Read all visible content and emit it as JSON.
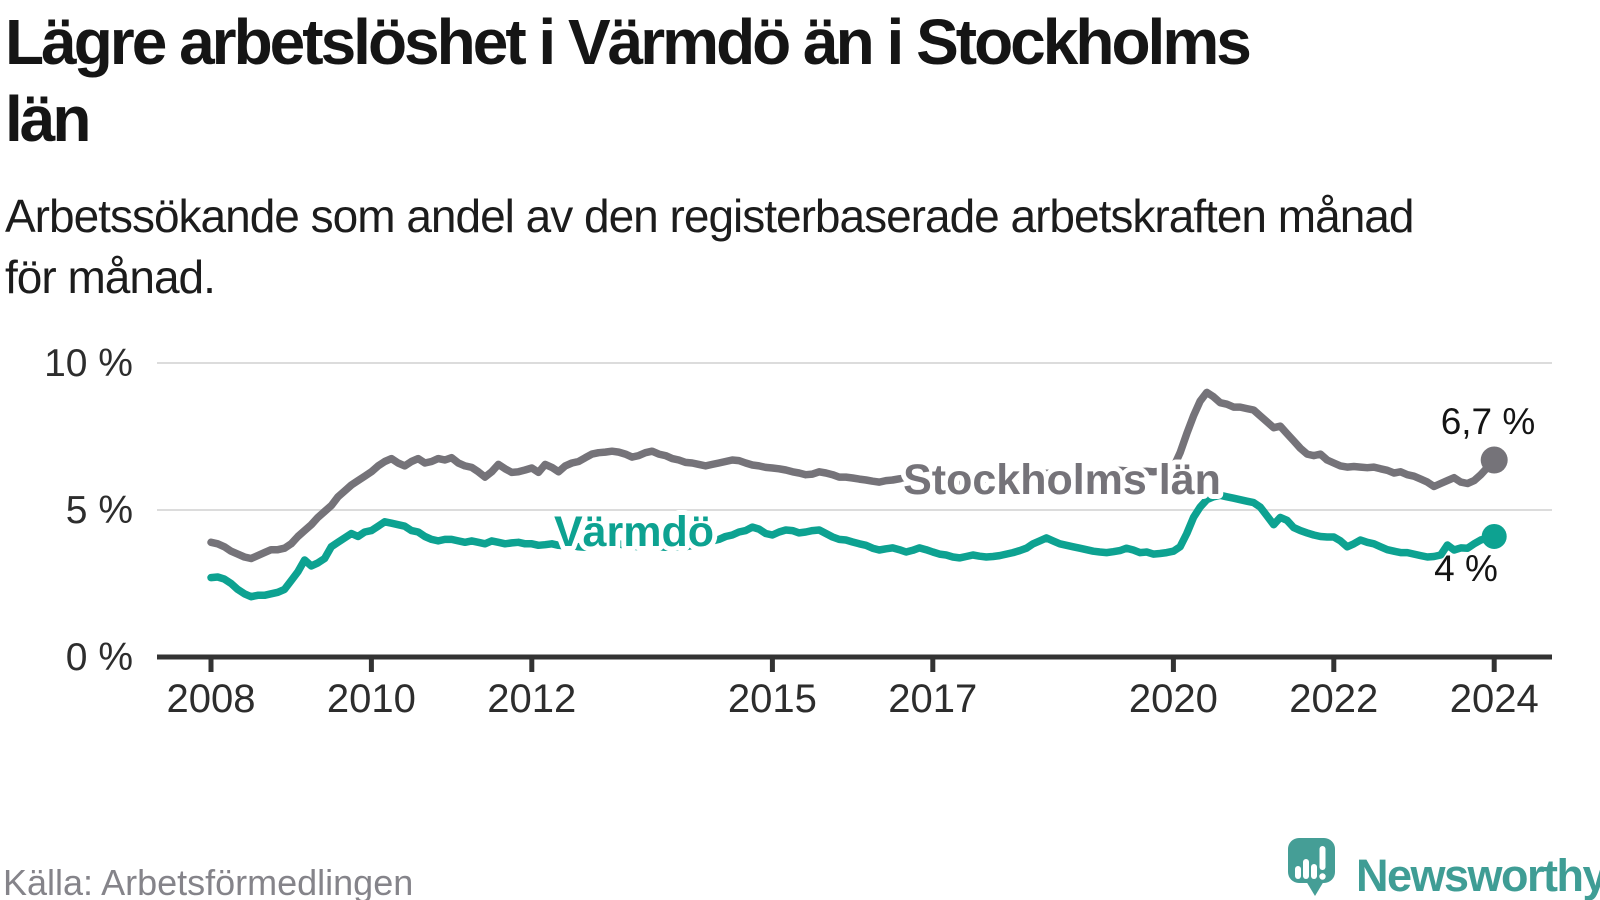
{
  "header": {
    "title_line1": "Lägre arbetslöshet i Värmdö än i Stockholms",
    "title_line2": "län",
    "subtitle_line1": "Arbetssökande som andel av den registerbaserade arbetskraften månad",
    "subtitle_line2": "för månad."
  },
  "footer": {
    "source": "Källa: Arbetsförmedlingen",
    "brand": "Newsworthy"
  },
  "colors": {
    "series_stockholm": "#757379",
    "series_varmdo": "#0da291",
    "gridline": "#dcdcdc",
    "axis": "#333333",
    "brand_teal": "#459e96",
    "text_dark": "#151515",
    "source_gray": "#85848a"
  },
  "chart_data": {
    "type": "line",
    "title": "Lägre arbetslöshet i Värmdö än i Stockholms län",
    "subtitle": "Arbetssökande som andel av den registerbaserade arbetskraften månad för månad.",
    "unit": "%",
    "x_start": "2008-01",
    "x_end": "2024-01",
    "x_interval": "monthly",
    "x_tick_years": [
      2008,
      2010,
      2012,
      2015,
      2017,
      2020,
      2022,
      2024
    ],
    "x_tick_labels": [
      "2008",
      "2010",
      "2012",
      "2015",
      "2017",
      "2020",
      "2022",
      "2024"
    ],
    "y_ticks": [
      {
        "label": "0 %",
        "value": 0
      },
      {
        "label": "5 %",
        "value": 5
      },
      {
        "label": "10 %",
        "value": 10
      }
    ],
    "ylim": [
      0,
      10.4
    ],
    "grid": "horizontal",
    "legend_position": "inline-labels",
    "source": "Källa: Arbetsförmedlingen",
    "series": [
      {
        "name": "Stockholms län",
        "color": "#757379",
        "end_label": "6,7 %",
        "last_value": 6.7,
        "values": [
          3.9,
          3.85,
          3.75,
          3.6,
          3.5,
          3.4,
          3.35,
          3.45,
          3.55,
          3.65,
          3.65,
          3.7,
          3.85,
          4.1,
          4.3,
          4.5,
          4.75,
          4.95,
          5.15,
          5.45,
          5.65,
          5.85,
          6.0,
          6.15,
          6.3,
          6.5,
          6.65,
          6.75,
          6.6,
          6.5,
          6.65,
          6.75,
          6.6,
          6.65,
          6.75,
          6.7,
          6.78,
          6.6,
          6.5,
          6.45,
          6.3,
          6.12,
          6.3,
          6.55,
          6.4,
          6.28,
          6.3,
          6.36,
          6.43,
          6.28,
          6.55,
          6.45,
          6.3,
          6.5,
          6.6,
          6.65,
          6.78,
          6.9,
          6.95,
          6.97,
          7.0,
          6.97,
          6.9,
          6.8,
          6.85,
          6.95,
          7.0,
          6.9,
          6.85,
          6.75,
          6.7,
          6.62,
          6.6,
          6.55,
          6.5,
          6.55,
          6.6,
          6.65,
          6.7,
          6.68,
          6.6,
          6.53,
          6.5,
          6.45,
          6.43,
          6.4,
          6.36,
          6.3,
          6.26,
          6.2,
          6.22,
          6.3,
          6.26,
          6.2,
          6.12,
          6.12,
          6.09,
          6.05,
          6.02,
          5.98,
          5.95,
          6.0,
          6.02,
          6.06,
          6.09,
          6.05,
          6.02,
          6.0,
          6.0,
          5.97,
          5.95,
          5.95,
          5.97,
          6.0,
          6.0,
          6.02,
          6.05,
          6.07,
          6.08,
          6.1,
          6.1,
          6.13,
          6.16,
          6.2,
          6.22,
          6.25,
          6.24,
          6.22,
          6.2,
          6.22,
          6.23,
          6.24,
          6.25,
          6.27,
          6.3,
          6.32,
          6.35,
          6.33,
          6.3,
          6.3,
          6.32,
          6.3,
          6.32,
          6.35,
          6.45,
          6.95,
          7.6,
          8.2,
          8.7,
          9.0,
          8.85,
          8.65,
          8.6,
          8.5,
          8.5,
          8.45,
          8.4,
          8.2,
          8.0,
          7.8,
          7.85,
          7.6,
          7.35,
          7.1,
          6.9,
          6.85,
          6.9,
          6.7,
          6.6,
          6.5,
          6.46,
          6.48,
          6.46,
          6.44,
          6.46,
          6.4,
          6.35,
          6.26,
          6.3,
          6.2,
          6.15,
          6.05,
          5.95,
          5.8,
          5.9,
          6.0,
          6.1,
          5.95,
          5.9,
          6.0,
          6.2,
          6.45,
          6.7
        ]
      },
      {
        "name": "Värmdö",
        "color": "#0da291",
        "end_label": "4 %",
        "last_value": 4.0,
        "values": [
          2.7,
          2.72,
          2.65,
          2.5,
          2.3,
          2.15,
          2.05,
          2.1,
          2.1,
          2.15,
          2.2,
          2.3,
          2.6,
          2.9,
          3.3,
          3.1,
          3.2,
          3.35,
          3.75,
          3.9,
          4.05,
          4.2,
          4.1,
          4.25,
          4.3,
          4.45,
          4.6,
          4.55,
          4.5,
          4.45,
          4.3,
          4.25,
          4.1,
          4.0,
          3.95,
          4.0,
          4.0,
          3.95,
          3.9,
          3.95,
          3.9,
          3.85,
          3.95,
          3.9,
          3.85,
          3.88,
          3.9,
          3.85,
          3.85,
          3.8,
          3.82,
          3.85,
          3.8,
          3.78,
          3.8,
          3.75,
          3.73,
          3.78,
          3.85,
          3.8,
          3.8,
          3.85,
          3.8,
          3.78,
          3.75,
          3.78,
          3.8,
          3.75,
          3.73,
          3.75,
          3.73,
          3.75,
          3.8,
          3.85,
          3.9,
          3.95,
          4.0,
          4.1,
          4.15,
          4.25,
          4.3,
          4.42,
          4.35,
          4.2,
          4.15,
          4.25,
          4.32,
          4.3,
          4.22,
          4.25,
          4.3,
          4.32,
          4.2,
          4.08,
          4.0,
          3.98,
          3.91,
          3.85,
          3.8,
          3.7,
          3.64,
          3.68,
          3.71,
          3.65,
          3.57,
          3.63,
          3.71,
          3.65,
          3.57,
          3.5,
          3.47,
          3.4,
          3.37,
          3.42,
          3.47,
          3.43,
          3.4,
          3.42,
          3.45,
          3.5,
          3.55,
          3.62,
          3.7,
          3.85,
          3.95,
          4.05,
          3.95,
          3.85,
          3.8,
          3.75,
          3.7,
          3.65,
          3.6,
          3.57,
          3.55,
          3.58,
          3.62,
          3.7,
          3.64,
          3.55,
          3.57,
          3.5,
          3.52,
          3.55,
          3.6,
          3.75,
          4.2,
          4.75,
          5.1,
          5.35,
          5.45,
          5.5,
          5.45,
          5.4,
          5.35,
          5.3,
          5.25,
          5.1,
          4.8,
          4.5,
          4.75,
          4.65,
          4.4,
          4.3,
          4.22,
          4.15,
          4.1,
          4.08,
          4.08,
          3.95,
          3.75,
          3.85,
          3.98,
          3.9,
          3.85,
          3.75,
          3.65,
          3.6,
          3.55,
          3.55,
          3.5,
          3.45,
          3.4,
          3.42,
          3.47,
          3.81,
          3.64,
          3.71,
          3.7,
          3.85,
          3.98,
          4.05,
          4.1
        ]
      }
    ]
  }
}
